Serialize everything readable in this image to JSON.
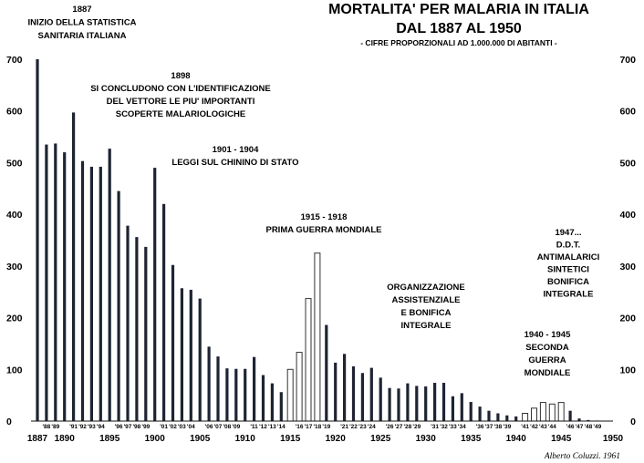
{
  "chart_data": {
    "type": "bar",
    "title": "MORTALITA' PER MALARIA IN ITALIA",
    "subtitle": "DAL 1887 AL 1950",
    "note": "- CIFRE PROPORZIONALI AD 1.000.000 DI ABITANTI -",
    "credit": "Alberto Coluzzi. 1961",
    "ylim": [
      0,
      700
    ],
    "yticks": [
      0,
      100,
      200,
      300,
      400,
      500,
      600,
      700
    ],
    "xlim": [
      1887,
      1950
    ],
    "xticks": [
      "1887",
      "1890",
      "1895",
      "1900",
      "1905",
      "1910",
      "1915",
      "1920",
      "1925",
      "1930",
      "1935",
      "1940",
      "1945",
      "1950"
    ],
    "xtick_years": [
      1887,
      1890,
      1895,
      1900,
      1905,
      1910,
      1915,
      1920,
      1925,
      1930,
      1935,
      1940,
      1945,
      1950
    ],
    "grid": false,
    "years": [
      1887,
      1888,
      1889,
      1890,
      1891,
      1892,
      1893,
      1894,
      1895,
      1896,
      1897,
      1898,
      1899,
      1900,
      1901,
      1902,
      1903,
      1904,
      1905,
      1906,
      1907,
      1908,
      1909,
      1910,
      1911,
      1912,
      1913,
      1914,
      1915,
      1916,
      1917,
      1918,
      1919,
      1920,
      1921,
      1922,
      1923,
      1924,
      1925,
      1926,
      1927,
      1928,
      1929,
      1930,
      1931,
      1932,
      1933,
      1934,
      1935,
      1936,
      1937,
      1938,
      1939,
      1940,
      1941,
      1942,
      1943,
      1944,
      1945,
      1946,
      1947,
      1948,
      1949
    ],
    "values": [
      700,
      535,
      537,
      520,
      597,
      503,
      492,
      492,
      527,
      445,
      378,
      356,
      337,
      490,
      420,
      302,
      257,
      254,
      237,
      144,
      125,
      102,
      101,
      101,
      124,
      89,
      73,
      56,
      100,
      133,
      237,
      325,
      186,
      113,
      130,
      106,
      93,
      103,
      84,
      64,
      63,
      73,
      68,
      67,
      74,
      74,
      48,
      54,
      37,
      28,
      20,
      15,
      11,
      9,
      15,
      25,
      36,
      33,
      36,
      20,
      5,
      2,
      1
    ],
    "outline_years": [
      1915,
      1916,
      1917,
      1918,
      1941,
      1942,
      1943,
      1944,
      1945
    ],
    "small_labels": [
      {
        "text": "'88",
        "year": 1888
      },
      {
        "text": "'89",
        "year": 1889
      },
      {
        "text": "'91",
        "year": 1891
      },
      {
        "text": "'92",
        "year": 1892
      },
      {
        "text": "'93",
        "year": 1893
      },
      {
        "text": "'94",
        "year": 1894
      },
      {
        "text": "'96",
        "year": 1896
      },
      {
        "text": "'97",
        "year": 1897
      },
      {
        "text": "'98",
        "year": 1898
      },
      {
        "text": "'99",
        "year": 1899
      },
      {
        "text": "'01",
        "year": 1901
      },
      {
        "text": "'02",
        "year": 1902
      },
      {
        "text": "'03",
        "year": 1903
      },
      {
        "text": "'04",
        "year": 1904
      },
      {
        "text": "'06",
        "year": 1906
      },
      {
        "text": "'07",
        "year": 1907
      },
      {
        "text": "'08",
        "year": 1908
      },
      {
        "text": "'09",
        "year": 1909
      },
      {
        "text": "'11",
        "year": 1911
      },
      {
        "text": "'12",
        "year": 1912
      },
      {
        "text": "'13",
        "year": 1913
      },
      {
        "text": "'14",
        "year": 1914
      },
      {
        "text": "'16",
        "year": 1916
      },
      {
        "text": "'17",
        "year": 1917
      },
      {
        "text": "'18",
        "year": 1918
      },
      {
        "text": "'19",
        "year": 1919
      },
      {
        "text": "'21",
        "year": 1921
      },
      {
        "text": "'22",
        "year": 1922
      },
      {
        "text": "'23",
        "year": 1923
      },
      {
        "text": "'24",
        "year": 1924
      },
      {
        "text": "'26",
        "year": 1926
      },
      {
        "text": "'27",
        "year": 1927
      },
      {
        "text": "'28",
        "year": 1928
      },
      {
        "text": "'29",
        "year": 1929
      },
      {
        "text": "'31",
        "year": 1931
      },
      {
        "text": "'32",
        "year": 1932
      },
      {
        "text": "'33",
        "year": 1933
      },
      {
        "text": "'34",
        "year": 1934
      },
      {
        "text": "'36",
        "year": 1936
      },
      {
        "text": "'37",
        "year": 1937
      },
      {
        "text": "'38",
        "year": 1938
      },
      {
        "text": "'39",
        "year": 1939
      },
      {
        "text": "'41",
        "year": 1941
      },
      {
        "text": "'42",
        "year": 1942
      },
      {
        "text": "'43",
        "year": 1943
      },
      {
        "text": "'44",
        "year": 1944
      },
      {
        "text": "'46",
        "year": 1946
      },
      {
        "text": "'47",
        "year": 1947
      },
      {
        "text": "'48",
        "year": 1948
      },
      {
        "text": "'49",
        "year": 1949
      }
    ],
    "annotations": [
      {
        "lines": [
          "1887",
          "INIZIO DELLA STATISTICA",
          "SANITARIA ITALIANA"
        ]
      },
      {
        "lines": [
          "1898",
          "SI CONCLUDONO CON L'IDENTIFICAZIONE",
          "DEL VETTORE LE PIU' IMPORTANTI",
          "SCOPERTE MALARIOLOGICHE"
        ]
      },
      {
        "lines": [
          "1901 - 1904",
          "LEGGI SUL CHININO DI STATO"
        ]
      },
      {
        "lines": [
          "1915 - 1918",
          "PRIMA GUERRA MONDIALE"
        ]
      },
      {
        "lines": [
          "ORGANIZZAZIONE",
          "ASSISTENZIALE",
          "E BONIFICA",
          "INTEGRALE"
        ]
      },
      {
        "lines": [
          "1940 - 1945",
          "SECONDA",
          "GUERRA",
          "MONDIALE"
        ]
      },
      {
        "lines": [
          "1947...",
          "D.D.T.",
          "ANTIMALARICI",
          "SINTETICI",
          "BONIFICA",
          "INTEGRALE"
        ]
      }
    ]
  },
  "colors": {
    "bar": "#1f2433",
    "outline": "#333333",
    "text": "#111111",
    "background": "#ffffff"
  }
}
